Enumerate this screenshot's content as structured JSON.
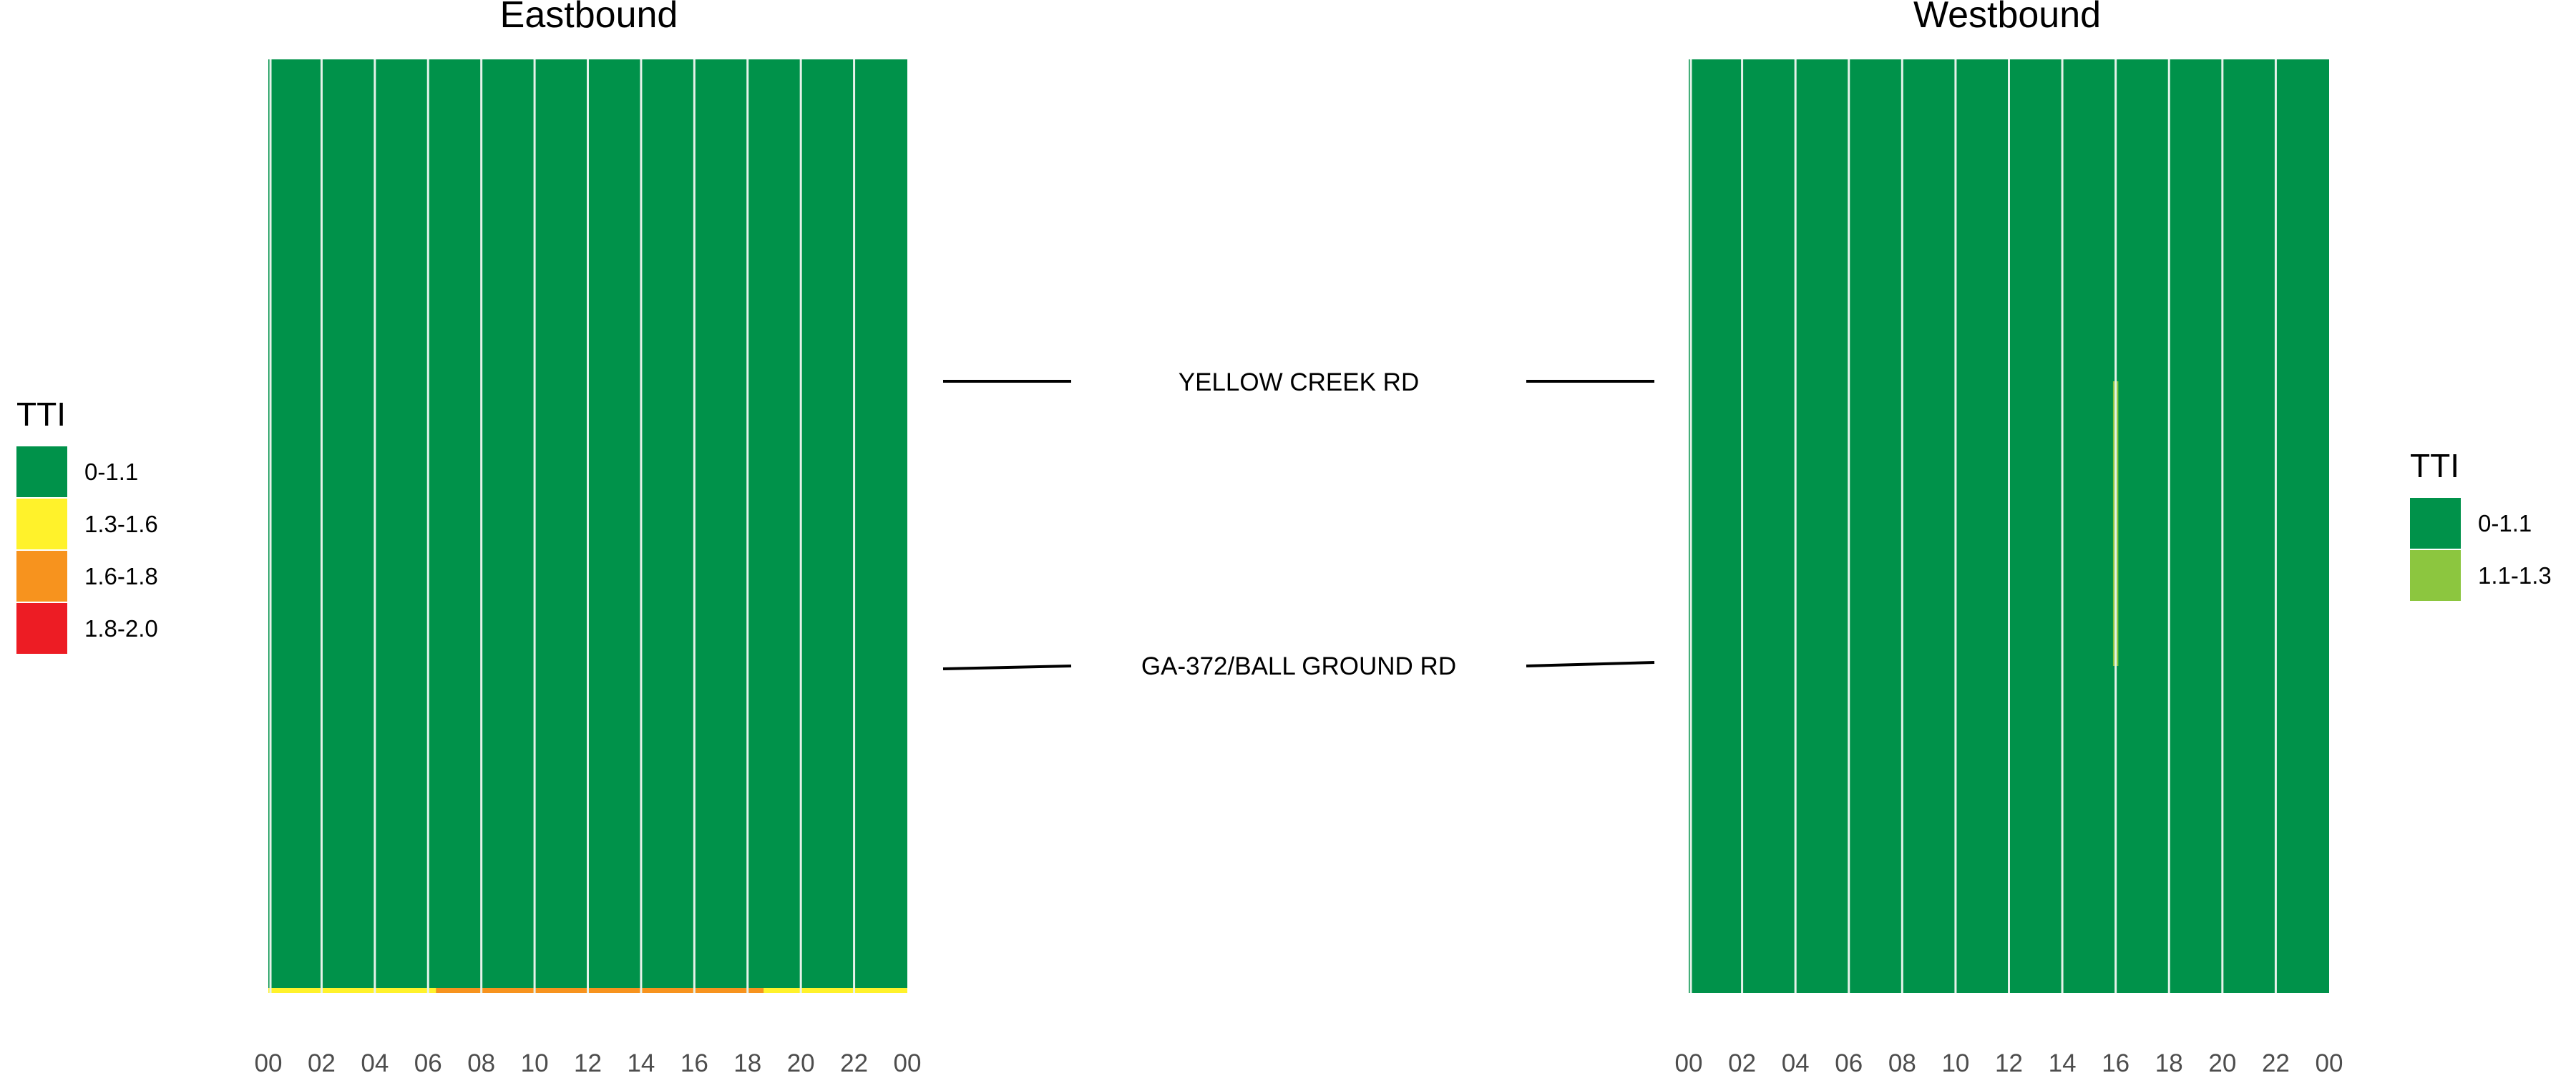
{
  "chart_data": [
    {
      "type": "heatmap",
      "title": "Eastbound",
      "x_ticks": [
        "00",
        "02",
        "04",
        "06",
        "08",
        "10",
        "12",
        "14",
        "16",
        "18",
        "20",
        "22",
        "00"
      ],
      "x_range_hours": [
        0,
        24
      ],
      "legend": {
        "title": "TTI",
        "position": "left",
        "entries": [
          {
            "label": "0-1.1",
            "color": "#00924a"
          },
          {
            "label": "1.3-1.6",
            "color": "#fff22b"
          },
          {
            "label": "1.6-1.8",
            "color": "#f7931e"
          },
          {
            "label": "1.8-2.0",
            "color": "#ed1c24"
          }
        ]
      },
      "base_tti": "0-1.1",
      "anomalies": [
        {
          "tti": "1.3-1.6",
          "start_hour": 0,
          "end_hour": 6.3,
          "location": "bottom-edge"
        },
        {
          "tti": "1.6-1.8",
          "start_hour": 6.3,
          "end_hour": 18.6,
          "location": "bottom-edge"
        },
        {
          "tti": "1.3-1.6",
          "start_hour": 18.6,
          "end_hour": 24,
          "location": "bottom-edge"
        }
      ]
    },
    {
      "type": "heatmap",
      "title": "Westbound",
      "x_ticks": [
        "00",
        "02",
        "04",
        "06",
        "08",
        "10",
        "12",
        "14",
        "16",
        "18",
        "20",
        "22",
        "00"
      ],
      "x_range_hours": [
        0,
        24
      ],
      "legend": {
        "title": "TTI",
        "position": "right",
        "entries": [
          {
            "label": "0-1.1",
            "color": "#00924a"
          },
          {
            "label": "1.1-1.3",
            "color": "#8cc63f"
          }
        ]
      },
      "base_tti": "0-1.1",
      "anomalies": [
        {
          "tti": "1.1-1.3",
          "start_hour": 15.9,
          "end_hour": 16.1,
          "location": "between YELLOW CREEK RD and GA-372/BALL GROUND RD"
        }
      ]
    }
  ],
  "road_labels": [
    "YELLOW CREEK RD",
    "GA-372/BALL GROUND RD"
  ],
  "colors": {
    "grid_line": "#e6f2ea",
    "tick_text": "#4d4d4d"
  }
}
